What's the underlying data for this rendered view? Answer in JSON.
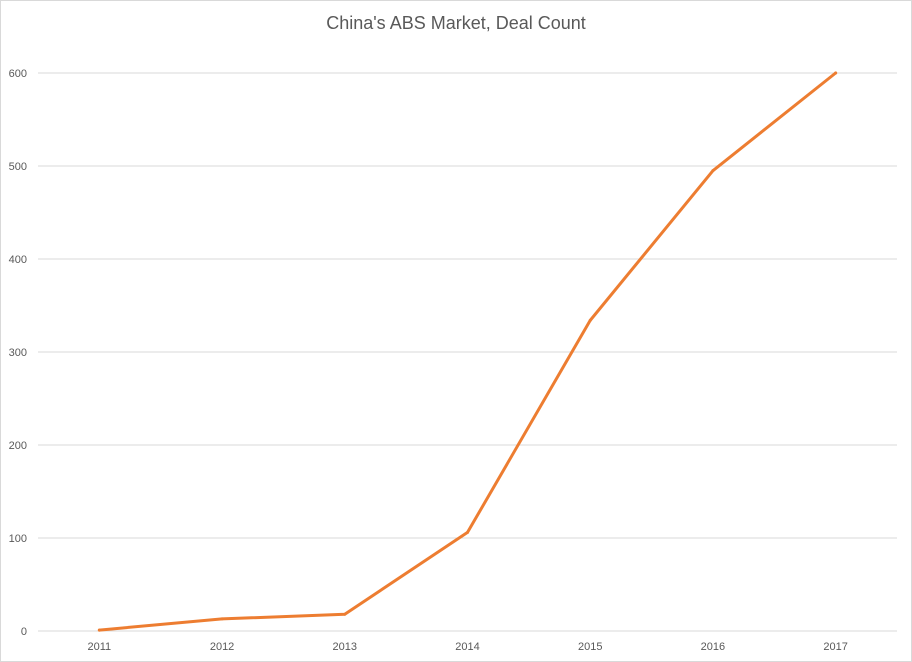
{
  "chart_data": {
    "type": "line",
    "title": "China's ABS Market, Deal Count",
    "xlabel": "",
    "ylabel": "",
    "categories": [
      "2011",
      "2012",
      "2013",
      "2014",
      "2015",
      "2016",
      "2017"
    ],
    "series": [
      {
        "values": [
          1,
          13,
          18,
          106,
          334,
          495,
          600
        ]
      }
    ],
    "ylim": [
      0,
      600
    ],
    "yticks": [
      0,
      100,
      200,
      300,
      400,
      500,
      600
    ],
    "grid": true,
    "legend": "none",
    "colors": {
      "line": "#ED7D31",
      "grid": "#D9D9D9",
      "text": "#595959"
    }
  }
}
